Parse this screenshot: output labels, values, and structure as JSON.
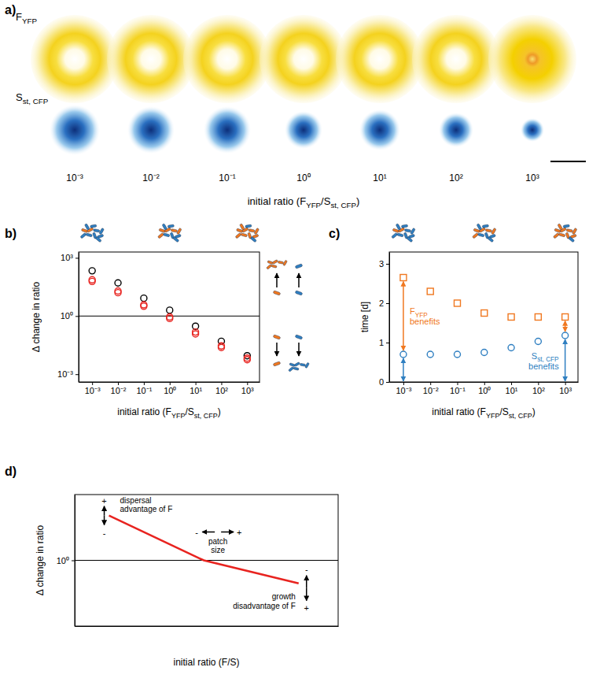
{
  "chart_data": [
    {
      "panel": "a)",
      "type": "image_row",
      "rows": [
        [
          "F",
          {
            "sub": "YFP"
          }
        ],
        [
          "S",
          {
            "sub": "st, CFP"
          }
        ]
      ],
      "categories": [
        "10⁻³",
        "10⁻²",
        "10⁻¹",
        "10⁰",
        "10¹",
        "10²",
        "10³"
      ],
      "xlabel": [
        "initial ratio (F",
        {
          "sub": "YFP"
        },
        "/S",
        {
          "sub": "st, CFP"
        },
        ")"
      ]
    },
    {
      "panel": "b)",
      "type": "scatter",
      "log": true,
      "x": [
        0.001,
        0.01,
        0.1,
        1,
        10,
        100,
        1000
      ],
      "series": [
        {
          "color": "#000000",
          "marker": "circle",
          "values": [
            215,
            51,
            8.3,
            2,
            0.3,
            0.05,
            0.009
          ]
        },
        {
          "color": "#e8231f",
          "marker": "circle",
          "values": [
            74,
            19.5,
            3.8,
            0.9,
            0.15,
            0.029,
            0.0068
          ]
        },
        {
          "color": "#e8231f",
          "marker": "circle",
          "values": [
            61,
            16,
            3.2,
            0.75,
            0.12,
            0.024,
            0.0056
          ]
        }
      ],
      "xlim": [
        0.0003,
        3000
      ],
      "ylim": [
        0.0004,
        2000
      ],
      "xticks": [
        {
          "value": 0.001,
          "label": "10⁻³"
        },
        {
          "value": 0.01,
          "label": "10⁻²"
        },
        {
          "value": 0.1,
          "label": "10⁻¹"
        },
        {
          "value": 1,
          "label": "10⁰"
        },
        {
          "value": 10,
          "label": "10¹"
        },
        {
          "value": 100,
          "label": "10²"
        },
        {
          "value": 1000,
          "label": "10³"
        }
      ],
      "yticks": [
        {
          "value": 1000,
          "label": "10³"
        },
        {
          "value": 1,
          "label": "10⁰"
        },
        {
          "value": 0.001,
          "label": "10⁻³"
        }
      ],
      "reference_y": 1,
      "xlabel": [
        "initial ratio (F",
        {
          "sub": "YFP"
        },
        "/S",
        {
          "sub": "st, CFP"
        },
        ")"
      ],
      "ylabel": "Δ change in ratio"
    },
    {
      "panel": "c)",
      "type": "scatter",
      "log": "x",
      "x": [
        0.001,
        0.01,
        0.1,
        1,
        10,
        100,
        1000
      ],
      "series": [
        {
          "color": "#f07820",
          "marker": "square",
          "values": [
            2.65,
            2.3,
            2.0,
            1.75,
            1.65,
            1.65,
            1.65
          ]
        },
        {
          "color": "#2f7fc1",
          "marker": "circle",
          "values": [
            0.7,
            0.7,
            0.7,
            0.75,
            0.87,
            1.03,
            1.18
          ]
        }
      ],
      "xlim": [
        0.0003,
        3000
      ],
      "ylim": [
        0,
        3.3
      ],
      "xticks": [
        {
          "value": 0.001,
          "label": "10⁻³"
        },
        {
          "value": 0.01,
          "label": "10⁻²"
        },
        {
          "value": 0.1,
          "label": "10⁻¹"
        },
        {
          "value": 1,
          "label": "10⁰"
        },
        {
          "value": 10,
          "label": "10¹"
        },
        {
          "value": 100,
          "label": "10²"
        },
        {
          "value": 1000,
          "label": "10³"
        }
      ],
      "yticks": [
        0,
        1,
        2,
        3
      ],
      "xlabel": [
        "initial ratio (F",
        {
          "sub": "YFP"
        },
        "/S",
        {
          "sub": "st, CFP"
        },
        ")"
      ],
      "ylabel": "time [d]",
      "annotations": [
        {
          "lines": [
            [
              "F",
              {
                "sub": "YFP"
              }
            ],
            [
              "benefits"
            ]
          ],
          "color": "#f07820"
        },
        {
          "lines": [
            [
              "S",
              {
                "sub": "st, CFP"
              }
            ],
            [
              "benefits"
            ]
          ],
          "color": "#2f7fc1"
        }
      ]
    },
    {
      "panel": "d)",
      "type": "line",
      "log": "y",
      "x": [
        0.13,
        0.49,
        0.85
      ],
      "values": [
        23,
        1,
        0.2
      ],
      "color": "#e8231f",
      "xlim": [
        0,
        1
      ],
      "ylim": [
        0.01,
        100
      ],
      "xticks": [],
      "yticks": [
        {
          "value": 1,
          "label": "10⁰"
        }
      ],
      "tick_labels": "y",
      "reference_y": 1,
      "xlabel": "initial ratio (F/S)",
      "ylabel": "Δ change in ratio",
      "annotations": [
        {
          "lines": [
            "dispersal",
            "advantage of F"
          ],
          "plus": "+",
          "minus": "-"
        },
        {
          "lines": [
            "patch",
            "size"
          ],
          "minus": "-",
          "plus": "+"
        },
        {
          "lines": [
            "growth",
            "disadvantage of F"
          ],
          "minus": "-",
          "plus": "+"
        }
      ]
    }
  ]
}
